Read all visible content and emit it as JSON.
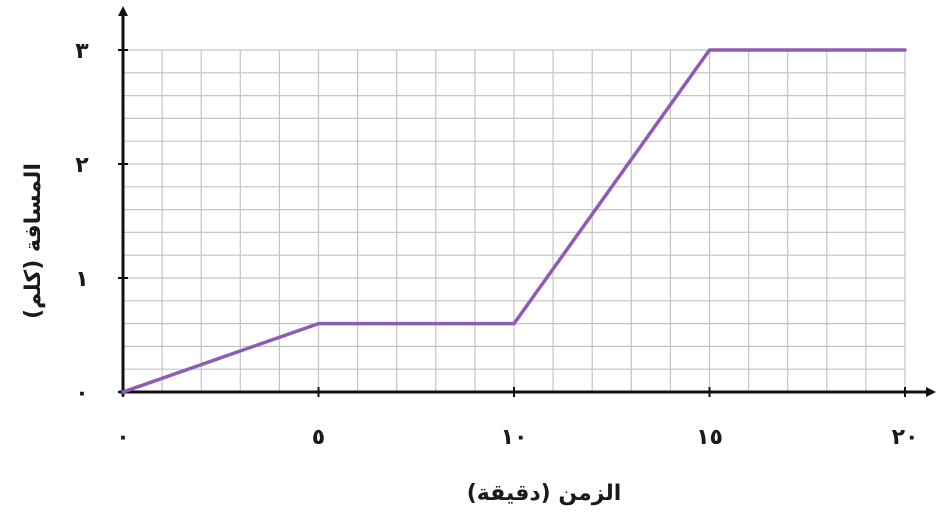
{
  "chart_data": {
    "type": "line",
    "xlabel": "الزمن (دقيقة)",
    "ylabel": "المسافة (كلم)",
    "xlim": [
      0,
      20
    ],
    "ylim": [
      0,
      3
    ],
    "x_ticks": [
      {
        "value": 0,
        "label": "٠"
      },
      {
        "value": 5,
        "label": "٥"
      },
      {
        "value": 10,
        "label": "١٠"
      },
      {
        "value": 15,
        "label": "١٥"
      },
      {
        "value": 20,
        "label": "٢٠"
      }
    ],
    "y_ticks": [
      {
        "value": 0,
        "label": "٠"
      },
      {
        "value": 1,
        "label": "١"
      },
      {
        "value": 2,
        "label": "٢"
      },
      {
        "value": 3,
        "label": "٣"
      }
    ],
    "grid": true,
    "grid_minor_x": 1,
    "grid_minor_y": 0.2,
    "series": [
      {
        "color": "#8e5bb5",
        "points": [
          {
            "x": 0,
            "y": 0
          },
          {
            "x": 5,
            "y": 0.6
          },
          {
            "x": 10,
            "y": 0.6
          },
          {
            "x": 15,
            "y": 3
          },
          {
            "x": 20,
            "y": 3
          }
        ]
      }
    ]
  }
}
